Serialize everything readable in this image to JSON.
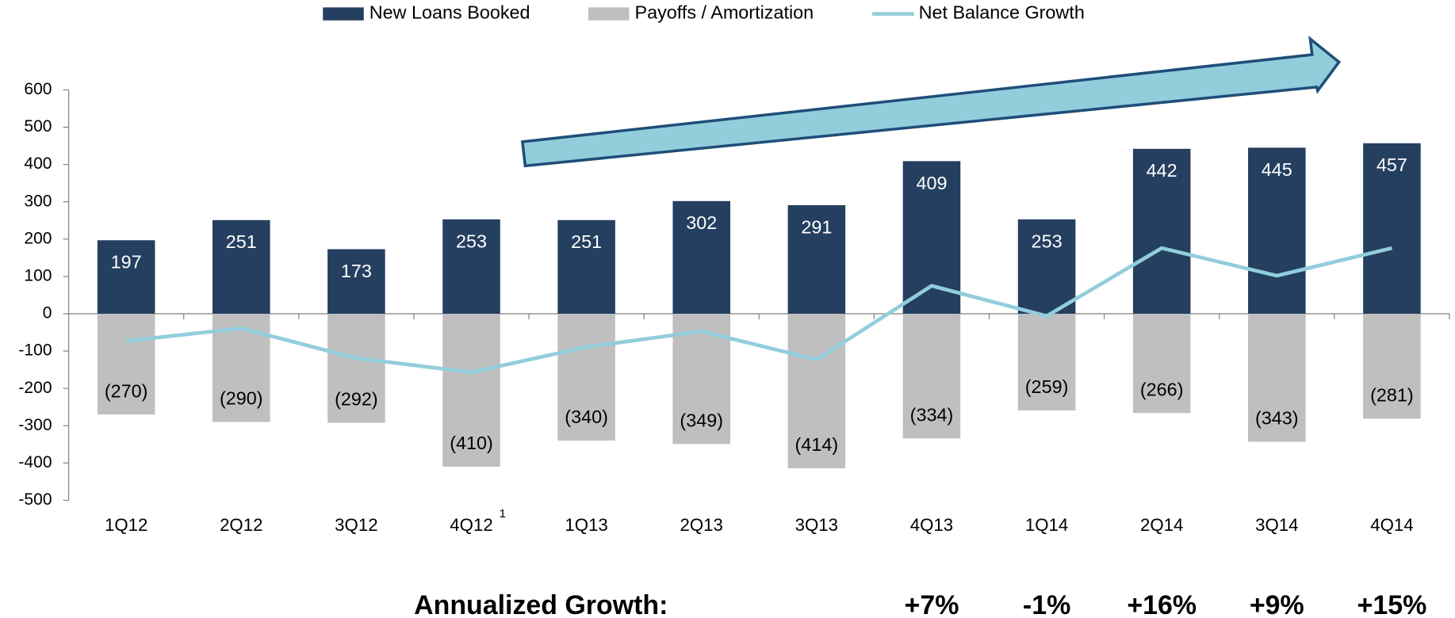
{
  "chart_data": {
    "type": "bar",
    "categories": [
      "1Q12",
      "2Q12",
      "3Q12",
      "4Q12",
      "1Q13",
      "2Q13",
      "3Q13",
      "4Q13",
      "1Q14",
      "2Q14",
      "3Q14",
      "4Q14"
    ],
    "category_superscripts": [
      null,
      null,
      null,
      "1",
      null,
      null,
      null,
      null,
      null,
      null,
      null,
      null
    ],
    "series": [
      {
        "name": "New Loans Booked",
        "type": "bar",
        "color": "#243f60",
        "values": [
          197,
          251,
          173,
          253,
          251,
          302,
          291,
          409,
          253,
          442,
          445,
          457
        ]
      },
      {
        "name": "Payoffs / Amortization",
        "type": "bar",
        "color": "#bfbfbf",
        "values": [
          -270,
          -290,
          -292,
          -410,
          -340,
          -349,
          -414,
          -334,
          -259,
          -266,
          -343,
          -281
        ],
        "value_labels": [
          "(270)",
          "(290)",
          "(292)",
          "(410)",
          "(340)",
          "(349)",
          "(414)",
          "(334)",
          "(259)",
          "(266)",
          "(343)",
          "(281)"
        ]
      },
      {
        "name": "Net Balance Growth",
        "type": "line",
        "color": "#92cddc",
        "values": [
          -73,
          -39,
          -119,
          -157,
          -89,
          -47,
          -123,
          75,
          -6,
          176,
          102,
          176
        ]
      }
    ],
    "ylim": [
      -500,
      600
    ],
    "yticks": [
      -500,
      -400,
      -300,
      -200,
      -100,
      0,
      100,
      200,
      300,
      400,
      500,
      600
    ],
    "growth_title": "Annualized Growth:",
    "growth_labels": [
      null,
      null,
      null,
      null,
      null,
      null,
      null,
      "+7%",
      "-1%",
      "+16%",
      "+9%",
      "+15%"
    ]
  }
}
